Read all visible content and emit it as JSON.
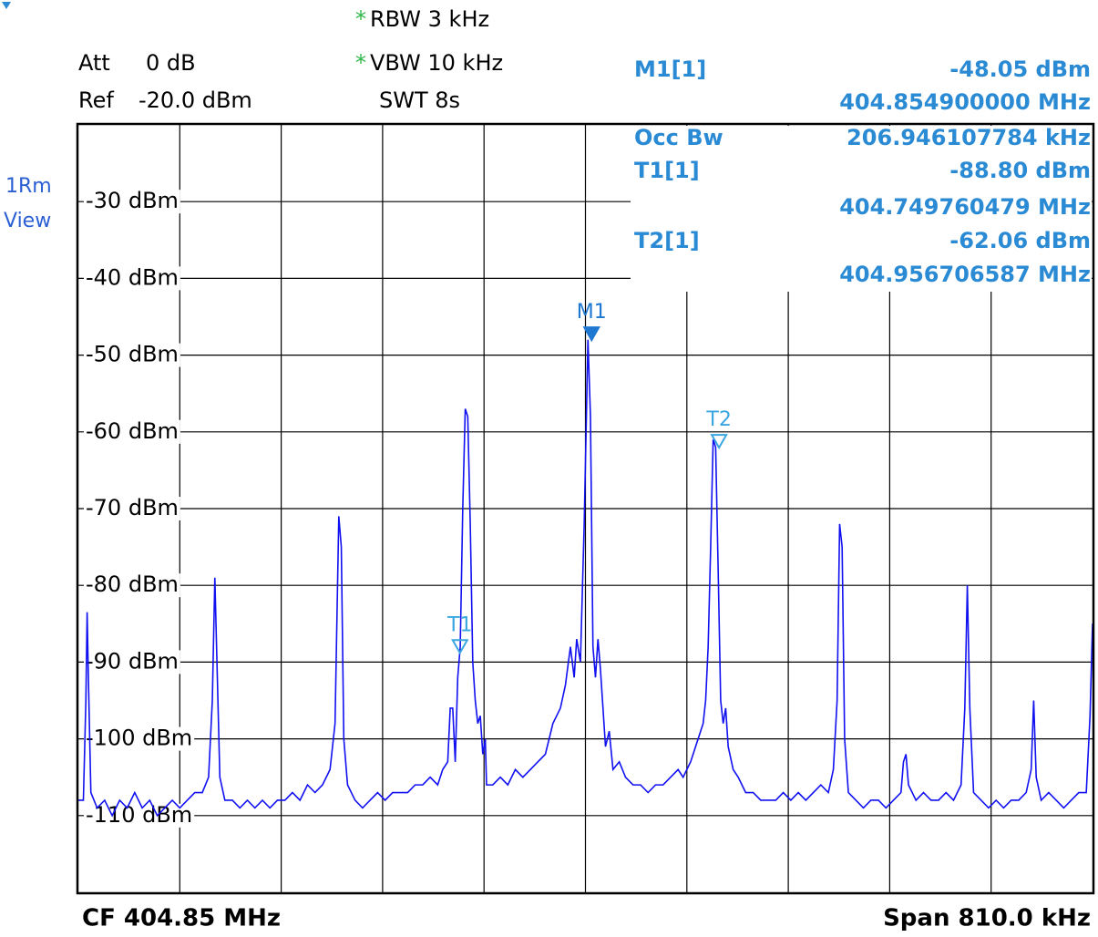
{
  "chart_data": {
    "type": "line",
    "annotations": {
      "rbw_mark": "*",
      "rbw": "RBW 3 kHz",
      "vbw_mark": "*",
      "vbw": "VBW 10 kHz",
      "swt": "SWT 8s",
      "att": "Att",
      "att_value": "0 dB",
      "ref": "Ref",
      "ref_value": "-20.0 dBm",
      "trace_mode": "1Rm",
      "trace_view": "View",
      "occ_bw_label": "Occ Bw",
      "occ_bw": "206.946107784 kHz",
      "center": "CF 404.85 MHz",
      "span": "Span 810.0 kHz"
    },
    "markers": [
      {
        "name": "M1",
        "label": "M1[1]",
        "x": {
          "value": 404.8549,
          "label": "404.854900000 MHz"
        },
        "y": {
          "value": -48.05,
          "label": "-48.05 dBm"
        },
        "color": "#1e78d2",
        "filled": true
      },
      {
        "name": "T1",
        "label": "T1[1]",
        "x": {
          "value": 404.749760479,
          "label": "404.749760479 MHz"
        },
        "y": {
          "value": -88.8,
          "label": "-88.80 dBm"
        },
        "color": "#3aa6e0",
        "filled": false
      },
      {
        "name": "T2",
        "label": "T2[1]",
        "x": {
          "value": 404.956706587,
          "label": "404.956706587 MHz"
        },
        "y": {
          "value": -62.06,
          "label": "-62.06 dBm"
        },
        "color": "#3aa6e0",
        "filled": false
      }
    ],
    "x": [
      404.445,
      404.449,
      404.451,
      404.452,
      404.453,
      404.455,
      404.46,
      404.466,
      404.472,
      404.478,
      404.484,
      404.49,
      404.496,
      404.502,
      404.508,
      404.514,
      404.52,
      404.526,
      404.532,
      404.538,
      404.544,
      404.549,
      404.552,
      404.554,
      404.556,
      404.558,
      404.562,
      404.568,
      404.574,
      404.58,
      404.586,
      404.592,
      404.598,
      404.604,
      404.61,
      404.616,
      404.622,
      404.628,
      404.634,
      404.64,
      404.646,
      404.65,
      404.653,
      404.655,
      404.657,
      404.66,
      404.666,
      404.672,
      404.678,
      404.684,
      404.69,
      404.696,
      404.702,
      404.708,
      404.714,
      404.72,
      404.726,
      404.732,
      404.736,
      404.74,
      404.742,
      404.744,
      404.746,
      404.748,
      404.75,
      404.752,
      404.754,
      404.756,
      404.758,
      404.76,
      404.762,
      404.764,
      404.766,
      404.768,
      404.77,
      404.771,
      404.776,
      404.782,
      404.788,
      404.794,
      404.8,
      404.806,
      404.812,
      404.818,
      404.824,
      404.83,
      404.834,
      404.838,
      404.841,
      404.843,
      404.846,
      404.849,
      404.852,
      404.854,
      404.856,
      404.858,
      404.86,
      404.862,
      404.864,
      404.866,
      404.869,
      404.872,
      404.877,
      404.882,
      404.888,
      404.894,
      404.9,
      404.906,
      404.912,
      404.918,
      404.924,
      404.928,
      404.934,
      404.94,
      404.944,
      404.946,
      404.948,
      404.95,
      404.952,
      404.954,
      404.956,
      404.958,
      404.96,
      404.962,
      404.964,
      404.968,
      404.972,
      404.978,
      404.984,
      404.99,
      404.996,
      405.002,
      405.008,
      405.014,
      405.02,
      405.026,
      405.032,
      405.038,
      405.044,
      405.048,
      405.051,
      405.053,
      405.055,
      405.057,
      405.06,
      405.066,
      405.072,
      405.078,
      405.084,
      405.09,
      405.096,
      405.102,
      405.104,
      405.106,
      405.108,
      405.114,
      405.12,
      405.126,
      405.132,
      405.138,
      405.144,
      405.15,
      405.153,
      405.155,
      405.157,
      405.16,
      405.166,
      405.172,
      405.178,
      405.184,
      405.19,
      405.196,
      405.202,
      405.206,
      405.208,
      405.21,
      405.214,
      405.22,
      405.226,
      405.232,
      405.238,
      405.244,
      405.25,
      405.253,
      405.255
    ],
    "values": [
      -108,
      -108,
      -95,
      -83.5,
      -92,
      -107,
      -109,
      -108,
      -110,
      -108,
      -109,
      -107,
      -109,
      -108,
      -110,
      -109,
      -108,
      -109,
      -108,
      -107,
      -107,
      -105,
      -95,
      -79,
      -92,
      -105,
      -108,
      -108,
      -109,
      -108,
      -109,
      -108,
      -109,
      -108,
      -108,
      -107,
      -108,
      -106,
      -107,
      -106,
      -104,
      -98,
      -71,
      -75,
      -100,
      -106,
      -108,
      -109,
      -108,
      -107,
      -108,
      -107,
      -107,
      -107,
      -106,
      -106,
      -105,
      -106,
      -104,
      -103,
      -96,
      -96,
      -103,
      -92,
      -88,
      -70,
      -57,
      -58,
      -72,
      -90,
      -95,
      -98,
      -97,
      -102,
      -100,
      -106,
      -106,
      -105,
      -106,
      -104,
      -105,
      -104,
      -103,
      -102,
      -98,
      -96,
      -93,
      -88,
      -92,
      -87,
      -90,
      -72,
      -48,
      -58,
      -88,
      -92,
      -87,
      -91,
      -96,
      -101,
      -99,
      -104,
      -103,
      -105,
      -106,
      -106,
      -107,
      -106,
      -106,
      -105,
      -104,
      -105,
      -103,
      -100,
      -98,
      -95,
      -88,
      -75,
      -61,
      -62,
      -78,
      -95,
      -98,
      -96,
      -101,
      -104,
      -105,
      -107,
      -107,
      -108,
      -108,
      -108,
      -107,
      -108,
      -107,
      -108,
      -107,
      -106,
      -107,
      -104,
      -95,
      -72,
      -75,
      -100,
      -107,
      -108,
      -109,
      -108,
      -108,
      -109,
      -108,
      -107,
      -103,
      -102,
      -106,
      -108,
      -107,
      -108,
      -108,
      -107,
      -108,
      -106,
      -96,
      -80,
      -96,
      -107,
      -108,
      -109,
      -108,
      -109,
      -108,
      -108,
      -107,
      -104,
      -95,
      -105,
      -108,
      -107,
      -108,
      -109,
      -108,
      -107,
      -107,
      -97,
      -85
    ],
    "color": "#1010f0",
    "xlim": [
      404.445,
      405.255
    ],
    "ylim": [
      -120,
      -20
    ],
    "xticks": [
      404.526,
      404.607,
      404.688,
      404.769,
      404.85,
      404.931,
      405.012,
      405.093,
      405.174
    ],
    "yticks": [
      {
        "value": -30,
        "label": "-30 dBm"
      },
      {
        "value": -40,
        "label": "-40 dBm"
      },
      {
        "value": -50,
        "label": "-50 dBm"
      },
      {
        "value": -60,
        "label": "-60 dBm"
      },
      {
        "value": -70,
        "label": "-70 dBm"
      },
      {
        "value": -80,
        "label": "-80 dBm"
      },
      {
        "value": -90,
        "label": "-90 dBm"
      },
      {
        "value": -100,
        "label": "-100 dBm"
      },
      {
        "value": -110,
        "label": "-110 dBm"
      }
    ],
    "grid": true
  }
}
